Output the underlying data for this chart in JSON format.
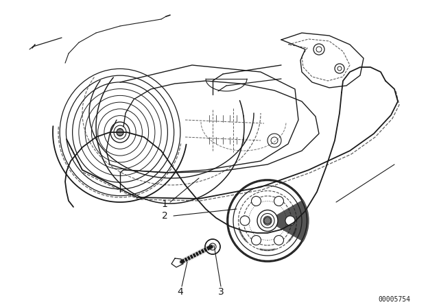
{
  "background_color": "#ffffff",
  "line_color": "#1a1a1a",
  "fig_width": 6.4,
  "fig_height": 4.48,
  "dpi": 100,
  "diagram_id": "00005754"
}
